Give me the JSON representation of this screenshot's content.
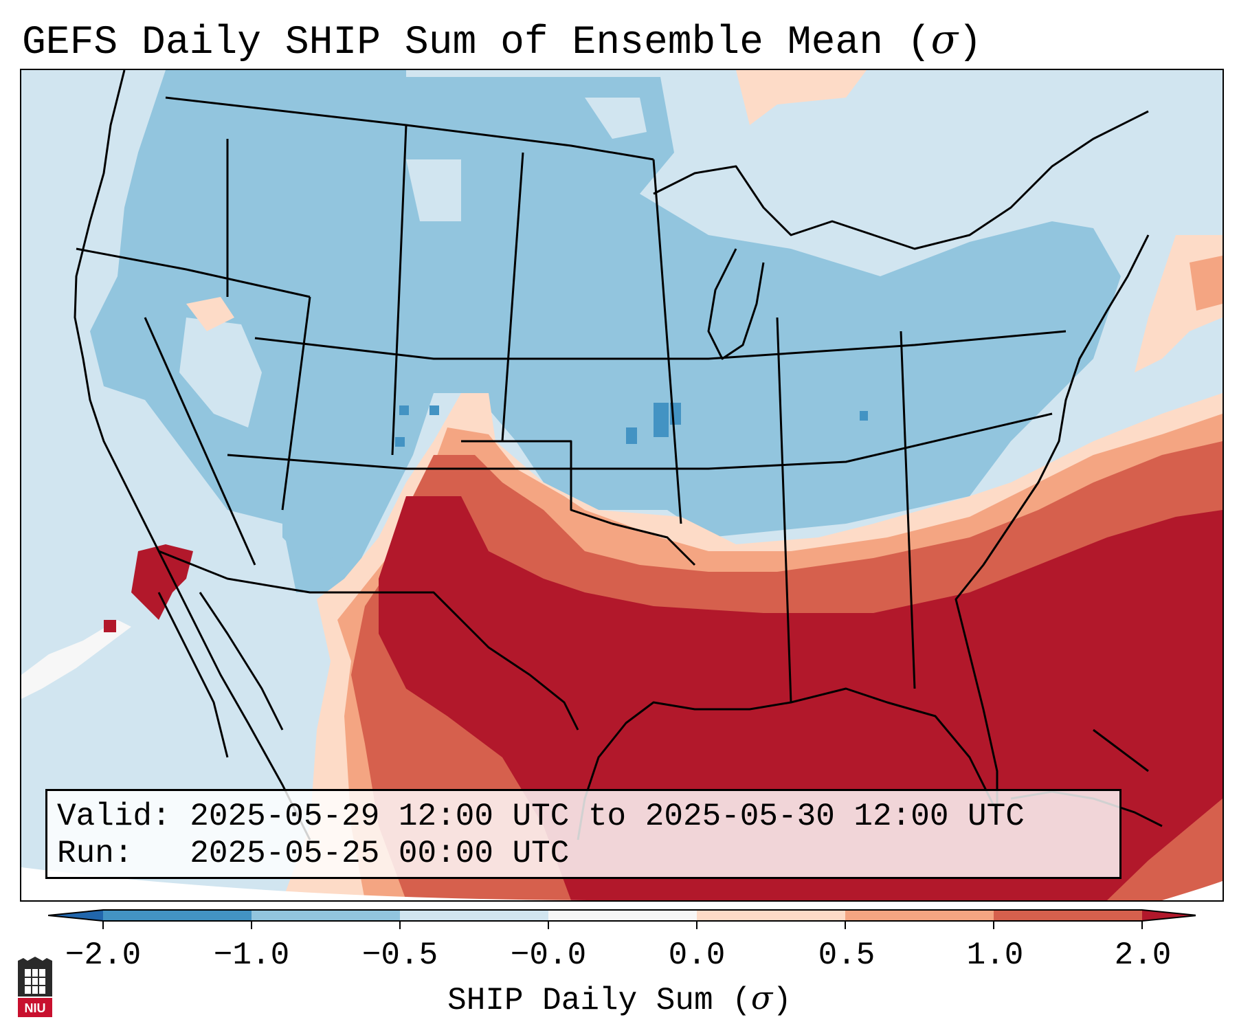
{
  "title": {
    "text": "GEFS Daily SHIP Sum of Ensemble Mean (",
    "sigma": "σ",
    "close": ")"
  },
  "info_box": {
    "valid_label": "Valid:",
    "valid_value": "2025-05-29 12:00 UTC to 2025-05-30 12:00 UTC",
    "run_label": "Run:",
    "run_value": "2025-05-25 00:00 UTC"
  },
  "colorbar": {
    "label_text": "SHIP Daily Sum (",
    "label_sigma": "σ",
    "label_close": ")",
    "tick_labels": [
      "−2.0",
      "−1.0",
      "−0.5",
      "−0.0",
      "0.0",
      "0.5",
      "1.0",
      "2.0"
    ],
    "bins": [
      {
        "range": "< -2.0",
        "color": "#2166ac"
      },
      {
        "range": "-2.0 to -1.0",
        "color": "#4393c3"
      },
      {
        "range": "-1.0 to -0.5",
        "color": "#92c5de"
      },
      {
        "range": "-0.5 to -0.0",
        "color": "#d1e5f0"
      },
      {
        "range": "-0.0 to 0.0",
        "color": "#f7f7f7"
      },
      {
        "range": "0.0 to 0.5",
        "color": "#fddbc7"
      },
      {
        "range": "0.5 to 1.0",
        "color": "#f4a582"
      },
      {
        "range": "1.0 to 2.0",
        "color": "#d6604d"
      },
      {
        "range": "> 2.0",
        "color": "#b2182b"
      }
    ]
  },
  "map": {
    "region": "Contiguous United States, northern Mexico and Gulf of Mexico",
    "colors": {
      "ocean_base": "#d1e5f0",
      "negative_mid": "#92c5de",
      "negative_strong": "#4393c3",
      "neutral": "#f7f7f7",
      "positive_weak": "#fddbc7",
      "positive_mid": "#f4a582",
      "positive_strong": "#d6604d",
      "positive_extreme": "#b2182b"
    }
  },
  "logo": {
    "text": "NIU",
    "color": "#c8102e"
  }
}
